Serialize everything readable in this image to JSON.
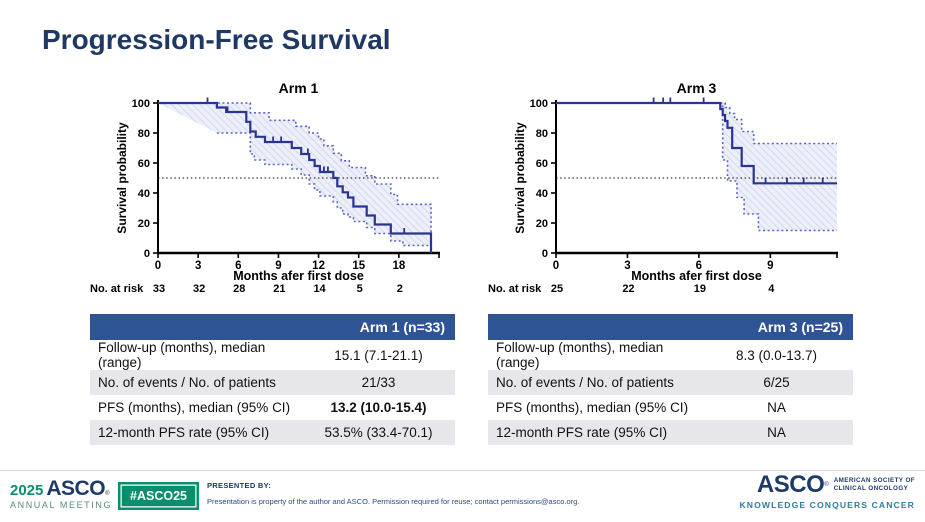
{
  "title": "Progression-Free Survival",
  "colors": {
    "title_navy": "#1F3864",
    "curve_blue": "#2B3491",
    "ci_blue": "#5B66C7",
    "band_fill": "#EDEFF9",
    "band_hatch": "#C3C8EC",
    "median_gray": "#3a3a3a",
    "table_header_blue": "#2F5496",
    "table_alt_gray": "#E7E7EB",
    "asco_green": "#0A8E6E",
    "asco_navy": "#1E3A6B",
    "asco_teal": "#2E7D9F"
  },
  "chart_data": [
    {
      "type": "line",
      "subtype": "kaplan-meier-step",
      "title": "Arm 1",
      "ylabel": "Survival probability",
      "xlabel": "Months afer first dose",
      "at_risk_label": "No. at risk",
      "xlim": [
        0,
        21
      ],
      "ylim": [
        0,
        100
      ],
      "xticks": [
        0,
        3,
        6,
        9,
        12,
        15,
        18
      ],
      "yticks": [
        0,
        20,
        40,
        60,
        80,
        100
      ],
      "median_line": 50,
      "grid": false,
      "curve": [
        [
          0,
          100
        ],
        [
          4.4,
          97
        ],
        [
          5.1,
          94
        ],
        [
          6.6,
          87.5
        ],
        [
          6.9,
          81
        ],
        [
          7.3,
          77.5
        ],
        [
          8.0,
          74
        ],
        [
          10.0,
          70
        ],
        [
          10.7,
          66
        ],
        [
          11.3,
          62
        ],
        [
          11.7,
          58
        ],
        [
          12.1,
          54
        ],
        [
          13.1,
          50
        ],
        [
          13.4,
          44.5
        ],
        [
          13.8,
          40.5
        ],
        [
          14.2,
          37
        ],
        [
          14.6,
          31
        ],
        [
          15.6,
          25
        ],
        [
          16.2,
          19
        ],
        [
          17.4,
          13
        ],
        [
          20.4,
          0
        ]
      ],
      "ci_upper": [
        [
          0,
          100
        ],
        [
          6.9,
          93.5
        ],
        [
          8.3,
          88.5
        ],
        [
          10.3,
          84.5
        ],
        [
          11.3,
          80
        ],
        [
          12.0,
          76
        ],
        [
          12.4,
          71.5
        ],
        [
          13.1,
          66.5
        ],
        [
          13.7,
          61.5
        ],
        [
          14.3,
          57
        ],
        [
          15.5,
          51.5
        ],
        [
          16.2,
          46
        ],
        [
          17.4,
          39
        ],
        [
          17.9,
          32.5
        ],
        [
          20.4,
          32.5
        ]
      ],
      "ci_lower": [
        [
          4.4,
          80
        ],
        [
          6.9,
          66
        ],
        [
          7.2,
          62
        ],
        [
          8.0,
          59
        ],
        [
          10.0,
          56
        ],
        [
          10.7,
          52
        ],
        [
          11.3,
          46
        ],
        [
          11.7,
          42
        ],
        [
          12.1,
          38
        ],
        [
          13.1,
          34
        ],
        [
          13.4,
          30
        ],
        [
          13.8,
          26
        ],
        [
          14.2,
          24
        ],
        [
          14.6,
          21
        ],
        [
          15.6,
          17
        ],
        [
          16.2,
          13
        ],
        [
          17.4,
          8
        ],
        [
          18.3,
          5
        ],
        [
          20.4,
          5
        ]
      ],
      "censors": [
        [
          3.7,
          100
        ],
        [
          5.2,
          94
        ],
        [
          8.6,
          74
        ],
        [
          9.2,
          74
        ],
        [
          11.2,
          66
        ],
        [
          12.4,
          54
        ],
        [
          12.7,
          54
        ],
        [
          18.4,
          13
        ]
      ],
      "ci_close_right": true,
      "at_risk": [
        33,
        32,
        28,
        21,
        14,
        5,
        2
      ]
    },
    {
      "type": "line",
      "subtype": "kaplan-meier-step",
      "title": "Arm 3",
      "ylabel": "Survival probability",
      "xlabel": "Months afer first dose",
      "at_risk_label": "No. at risk",
      "xlim": [
        0,
        11.8
      ],
      "ylim": [
        0,
        100
      ],
      "xticks": [
        0,
        3,
        6,
        9
      ],
      "yticks": [
        0,
        20,
        40,
        60,
        80,
        100
      ],
      "median_line": 50,
      "grid": false,
      "curve": [
        [
          0,
          100
        ],
        [
          6.9,
          96
        ],
        [
          7.0,
          92
        ],
        [
          7.1,
          88
        ],
        [
          7.2,
          83.5
        ],
        [
          7.4,
          70
        ],
        [
          7.8,
          58
        ],
        [
          8.3,
          46.5
        ],
        [
          11.8,
          46.5
        ]
      ],
      "ci_upper": [
        [
          6.9,
          100
        ],
        [
          7.1,
          97
        ],
        [
          7.3,
          93
        ],
        [
          7.5,
          89
        ],
        [
          7.8,
          81
        ],
        [
          8.3,
          73
        ],
        [
          11.8,
          73
        ]
      ],
      "ci_lower": [
        [
          6.9,
          100
        ],
        [
          7.0,
          62
        ],
        [
          7.2,
          48
        ],
        [
          7.6,
          37
        ],
        [
          7.9,
          26
        ],
        [
          8.5,
          15
        ],
        [
          11.8,
          15
        ]
      ],
      "censors": [
        [
          4.1,
          100
        ],
        [
          4.5,
          100
        ],
        [
          4.8,
          100
        ],
        [
          6.2,
          100
        ],
        [
          8.8,
          46.5
        ],
        [
          9.7,
          46.5
        ],
        [
          10.4,
          46.5
        ],
        [
          11.2,
          46.5
        ]
      ],
      "ci_close_right": false,
      "at_risk": [
        25,
        22,
        19,
        4
      ]
    }
  ],
  "tables": {
    "arm1": {
      "header": "Arm 1 (n=33)",
      "rows": [
        {
          "label": "Follow-up (months), median (range)",
          "value": "15.1 (7.1-21.1)"
        },
        {
          "label": "No. of events / No. of patients",
          "value": "21/33"
        },
        {
          "label": "PFS (months), median (95% CI)",
          "value": "13.2 (10.0-15.4)"
        },
        {
          "label": "12-month PFS rate (95% CI)",
          "value": "53.5% (33.4-70.1)"
        }
      ]
    },
    "arm3": {
      "header": "Arm 3 (n=25)",
      "rows": [
        {
          "label": "Follow-up (months), median (range)",
          "value": "8.3 (0.0-13.7)"
        },
        {
          "label": "No. of events / No. of patients",
          "value": "6/25"
        },
        {
          "label": "PFS (months), median (95% CI)",
          "value": "NA"
        },
        {
          "label": "12-month PFS rate (95% CI)",
          "value": "NA"
        }
      ]
    }
  },
  "footer": {
    "meeting_year": "2025",
    "meeting_org": "ASCO",
    "reg_mark": "®",
    "meeting_name": "ANNUAL MEETING",
    "hashtag": "#ASCO25",
    "presented_by_label": "PRESENTED BY:",
    "disclaimer": "Presentation is property of the author and ASCO. Permission required for reuse; contact permissions@asco.org.",
    "asco_logo_text": "ASCO",
    "asco_society_line1": "AMERICAN SOCIETY OF",
    "asco_society_line2": "CLINICAL ONCOLOGY",
    "asco_tagline": "KNOWLEDGE CONQUERS CANCER"
  }
}
